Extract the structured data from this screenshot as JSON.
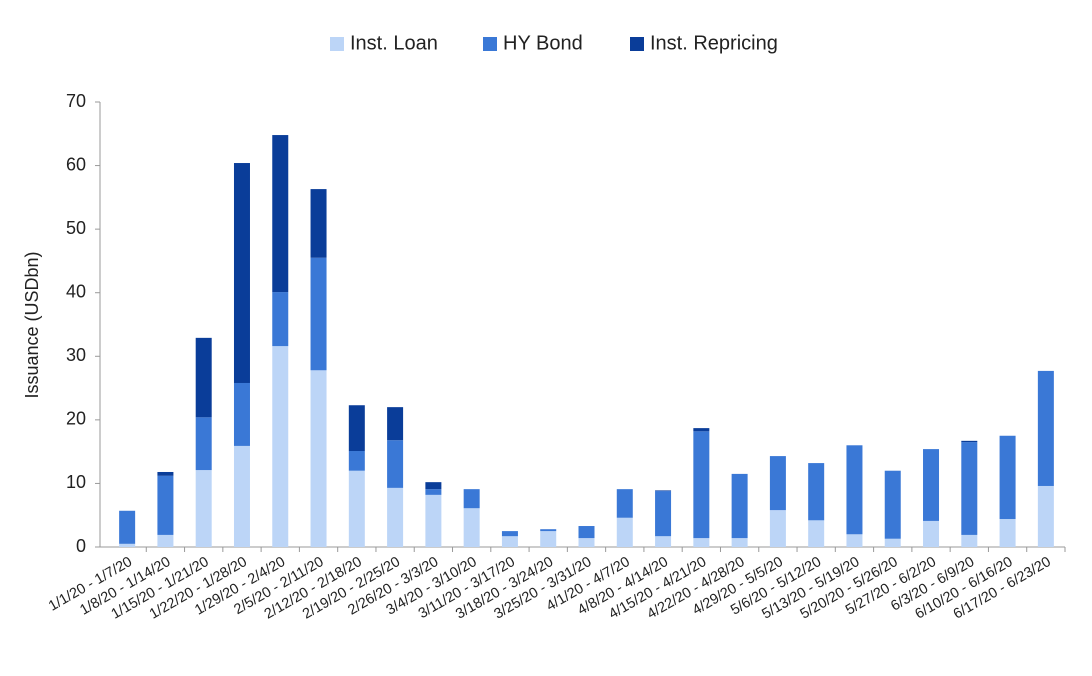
{
  "chart_data": {
    "type": "stacked_bar",
    "y_axis_label": "Issuance (USDbn)",
    "categories": [
      "1/1/20 - 1/7/20",
      "1/8/20 - 1/14/20",
      "1/15/20 - 1/21/20",
      "1/22/20 - 1/28/20",
      "1/29/20 - 2/4/20",
      "2/5/20 - 2/11/20",
      "2/12/20 - 2/18/20",
      "2/19/20 - 2/25/20",
      "2/26/20 - 3/3/20",
      "3/4/20 - 3/10/20",
      "3/11/20 - 3/17/20",
      "3/18/20 - 3/24/20",
      "3/25/20 - 3/31/20",
      "4/1/20 - 4/7/20",
      "4/8/20 - 4/14/20",
      "4/15/20 - 4/21/20",
      "4/22/20 - 4/28/20",
      "4/29/20 - 5/5/20",
      "5/6/20 - 5/12/20",
      "5/13/20 - 5/19/20",
      "5/20/20 - 5/26/20",
      "5/27/20 - 6/2/20",
      "6/3/20 - 6/9/20",
      "6/10/20 - 6/16/20",
      "6/17/20 - 6/23/20"
    ],
    "series": [
      {
        "name": "Inst. Loan",
        "color": "#bcd5f7",
        "values": [
          0.5,
          1.9,
          12.1,
          15.9,
          31.6,
          27.8,
          12.0,
          9.3,
          8.2,
          6.1,
          1.7,
          2.5,
          1.4,
          4.6,
          1.7,
          1.4,
          1.4,
          5.8,
          4.2,
          2.0,
          1.3,
          4.1,
          1.9,
          4.4,
          9.6
        ]
      },
      {
        "name": "HY Bond",
        "color": "#3a78d6",
        "values": [
          5.2,
          9.3,
          8.3,
          9.9,
          8.5,
          17.7,
          3.1,
          7.5,
          0.9,
          3.0,
          0.8,
          0.3,
          1.9,
          4.5,
          7.1,
          16.8,
          10.1,
          8.5,
          9.0,
          14.0,
          10.7,
          11.3,
          14.6,
          13.1,
          18.1
        ]
      },
      {
        "name": "Inst. Repricing",
        "color": "#0a3d99",
        "values": [
          0,
          0.6,
          12.5,
          34.6,
          24.7,
          10.8,
          7.2,
          5.2,
          1.1,
          0,
          0,
          0,
          0,
          0,
          0.1,
          0.5,
          0,
          0,
          0,
          0,
          0,
          0,
          0.2,
          0,
          0
        ]
      }
    ],
    "ylim": [
      0,
      70
    ],
    "yticks": [
      0,
      10,
      20,
      30,
      40,
      50,
      60,
      70
    ],
    "legend": "top"
  }
}
